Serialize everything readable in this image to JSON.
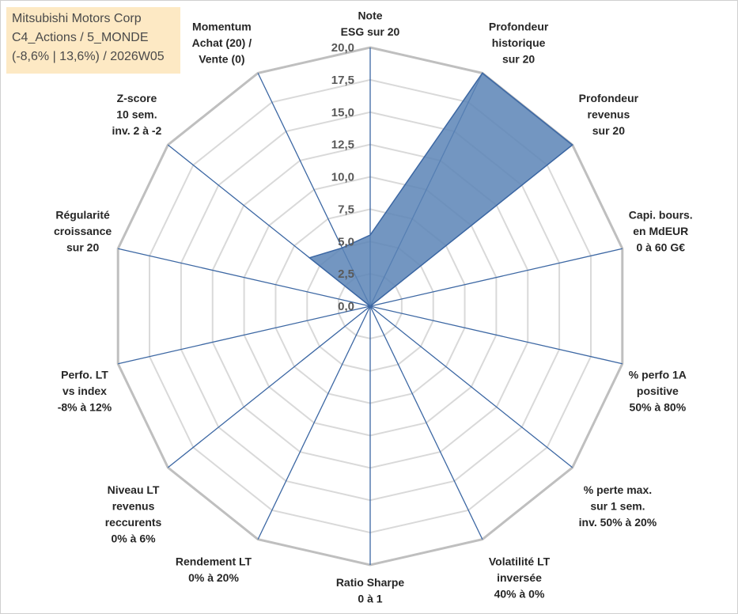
{
  "info_box": {
    "line1": "Mitsubishi Motors Corp",
    "line2": "C4_Actions / 5_MONDE",
    "line3": "(-8,6% | 13,6%) / 2026W05"
  },
  "colors": {
    "series_fill": "#5b84b6",
    "series_stroke": "#3c67a3",
    "spoke": "#3c67a3",
    "web_outer": "#bfbfbf",
    "web_inner": "#d9d9d9",
    "info_bg": "#fde9c4"
  },
  "chart_data": {
    "type": "radar",
    "rmin": 0,
    "rmax": 20,
    "tick_step": 2.5,
    "tick_labels": [
      "0,0",
      "2,5",
      "5,0",
      "7,5",
      "10,0",
      "12,5",
      "15,0",
      "17,5",
      "20,0"
    ],
    "grid": true,
    "categories": [
      [
        "Note",
        "ESG sur 20"
      ],
      [
        "Profondeur",
        "historique",
        "sur 20"
      ],
      [
        "Profondeur",
        "revenus",
        "sur 20"
      ],
      [
        "Capi. bours.",
        "en MdEUR",
        "0 à 60 G€"
      ],
      [
        "% perfo 1A",
        "positive",
        "50% à 80%"
      ],
      [
        "% perte max.",
        "sur 1 sem.",
        "inv. 50% à 20%"
      ],
      [
        "Volatilité LT",
        "inversée",
        "40% à 0%"
      ],
      [
        "Ratio Sharpe",
        "0 à 1"
      ],
      [
        "Rendement LT",
        "0% à 20%"
      ],
      [
        "Niveau LT",
        "revenus",
        "reccurents",
        "0% à 6%"
      ],
      [
        "Perfo. LT",
        "vs index",
        "-8% à 12%"
      ],
      [
        "Régularité",
        "croissance",
        "sur 20"
      ],
      [
        "Z-score",
        "10 sem.",
        "inv. 2 à -2"
      ],
      [
        "Momentum",
        "Achat (20) /",
        "Vente (0)"
      ]
    ],
    "series": [
      {
        "values": [
          5.5,
          20,
          20,
          0,
          0,
          0,
          0,
          0,
          0,
          0,
          0,
          0,
          6,
          5
        ]
      }
    ]
  }
}
